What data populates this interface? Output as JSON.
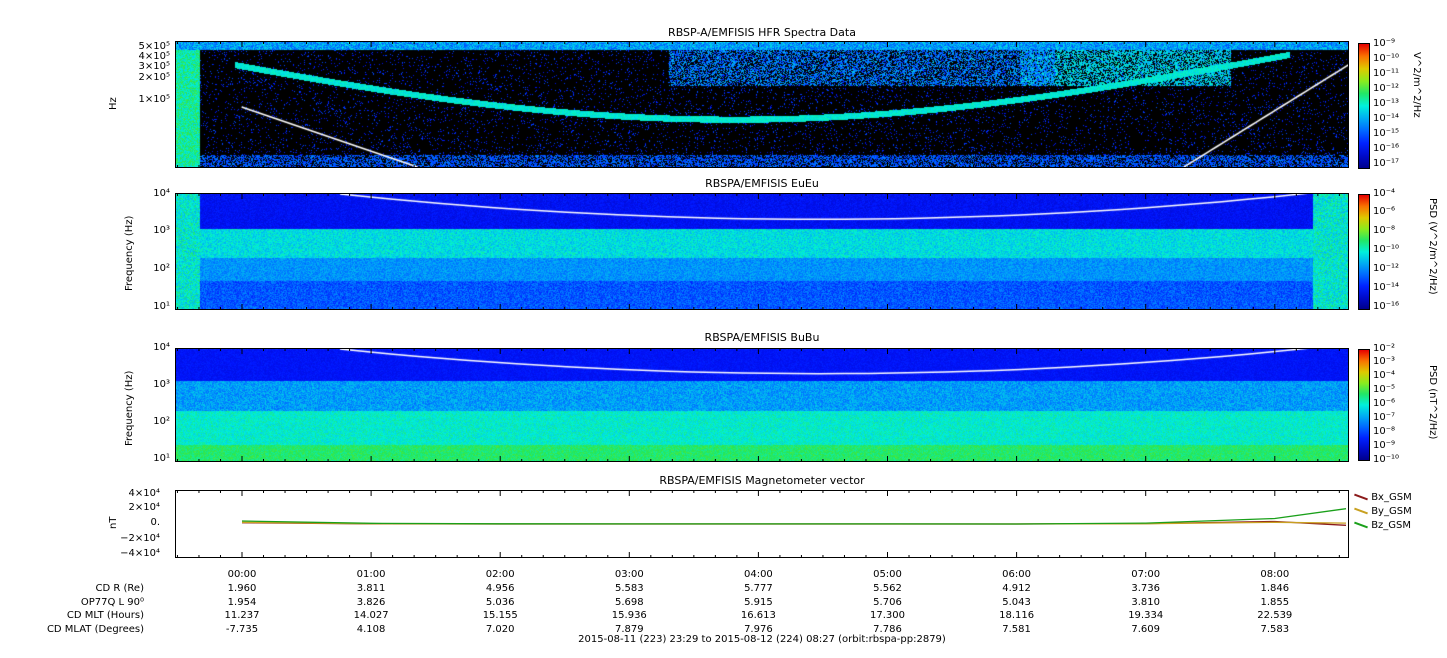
{
  "colors": {
    "spec_bg": "#000000",
    "cline": "#ffffff",
    "bx": "#8b1a1a",
    "by": "#c8a020",
    "bz": "#1aa01a"
  },
  "panels": [
    {
      "id": "hfr",
      "title": "RBSP-A/EMFISIS  HFR Spectra Data",
      "ylabel": "Hz",
      "yticks": [
        "5×10⁵",
        "4×10⁵",
        "3×10⁵",
        "2×10⁵",
        "1×10⁵"
      ],
      "cbar_label": "V^2/m^2/Hz",
      "cbar_ticks": [
        "10⁻⁹",
        "10⁻¹⁰",
        "10⁻¹¹",
        "10⁻¹²",
        "10⁻¹³",
        "10⁻¹⁴",
        "10⁻¹⁵",
        "10⁻¹⁶",
        "10⁻¹⁷"
      ]
    },
    {
      "id": "eueu",
      "title": "RBSPA/EMFISIS  EuEu",
      "ylabel": "Frequency (Hz)",
      "yticks": [
        "10⁴",
        "10³",
        "10²",
        "10¹"
      ],
      "cbar_label": "PSD (V^2/m^2/Hz)",
      "cbar_ticks": [
        "10⁻⁴",
        "10⁻⁶",
        "10⁻⁸",
        "10⁻¹⁰",
        "10⁻¹²",
        "10⁻¹⁴",
        "10⁻¹⁶"
      ]
    },
    {
      "id": "bubu",
      "title": "RBSPA/EMFISIS  BuBu",
      "ylabel": "Frequency (Hz)",
      "yticks": [
        "10⁴",
        "10³",
        "10²",
        "10¹"
      ],
      "cbar_label": "PSD (nT^2/Hz)",
      "cbar_ticks": [
        "10⁻²",
        "10⁻³",
        "10⁻⁴",
        "10⁻⁵",
        "10⁻⁶",
        "10⁻⁷",
        "10⁻⁸",
        "10⁻⁹",
        "10⁻¹⁰"
      ]
    }
  ],
  "mag": {
    "title": "RBSPA/EMFISIS  Magnetometer vector",
    "ylabel": "nT",
    "yticks": [
      "4×10⁴",
      "2×10⁴",
      "0.",
      "−2×10⁴",
      "−4×10⁴"
    ],
    "legend": [
      "Bx_GSM",
      "By_GSM",
      "Bz_GSM"
    ]
  },
  "chart_data": {
    "type": "line",
    "title": "RBSPA/EMFISIS  Magnetometer vector",
    "ylabel": "nT",
    "ylim": [
      -40000,
      40000
    ],
    "x": [
      "00:00",
      "01:00",
      "02:00",
      "03:00",
      "04:00",
      "05:00",
      "06:00",
      "07:00",
      "08:00",
      "08:27"
    ],
    "series": [
      {
        "name": "Bx_GSM",
        "values": [
          1500,
          200,
          0,
          0,
          0,
          0,
          0,
          500,
          3000,
          -1500
        ]
      },
      {
        "name": "By_GSM",
        "values": [
          2000,
          300,
          0,
          0,
          0,
          0,
          0,
          300,
          2000,
          1000
        ]
      },
      {
        "name": "Bz_GSM",
        "values": [
          3500,
          800,
          200,
          100,
          100,
          100,
          0,
          1000,
          6500,
          18000
        ]
      }
    ]
  },
  "xaxis": {
    "hours": [
      "00:00",
      "01:00",
      "02:00",
      "03:00",
      "04:00",
      "05:00",
      "06:00",
      "07:00",
      "08:00"
    ],
    "rows": [
      {
        "label": "CD R (Re)",
        "values": [
          "1.960",
          "3.811",
          "4.956",
          "5.583",
          "5.777",
          "5.562",
          "4.912",
          "3.736",
          "1.846"
        ]
      },
      {
        "label": "OP77Q L 90⁰",
        "values": [
          "1.954",
          "3.826",
          "5.036",
          "5.698",
          "5.915",
          "5.706",
          "5.043",
          "3.810",
          "1.855"
        ]
      },
      {
        "label": "CD MLT (Hours)",
        "values": [
          "11.237",
          "14.027",
          "15.155",
          "15.936",
          "16.613",
          "17.300",
          "18.116",
          "19.334",
          "22.539"
        ]
      },
      {
        "label": "CD MLAT (Degrees)",
        "values": [
          "-7.735",
          "4.108",
          "7.020",
          "7.879",
          "7.976",
          "7.786",
          "7.581",
          "7.609",
          "7.583"
        ]
      }
    ],
    "footer": "2015-08-11 (223) 23:29 to 2015-08-12 (224) 08:27 (orbit:rbspa-pp:2879)"
  }
}
